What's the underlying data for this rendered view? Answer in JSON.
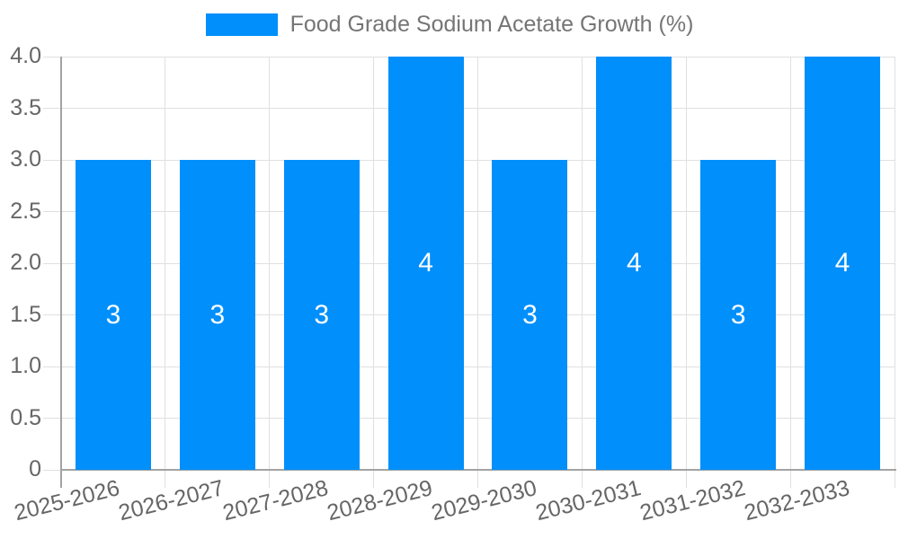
{
  "legend": {
    "label": "Food Grade Sodium Acetate Growth (%)"
  },
  "chart_data": {
    "type": "bar",
    "title": "Food Grade Sodium Acetate Growth (%)",
    "categories": [
      "2025-2026",
      "2026-2027",
      "2027-2028",
      "2028-2029",
      "2029-2030",
      "2030-2031",
      "2031-2032",
      "2032-2033"
    ],
    "series": [
      {
        "name": "Food Grade Sodium Acetate Growth (%)",
        "values": [
          3,
          3,
          3,
          4,
          3,
          4,
          3,
          4
        ]
      }
    ],
    "value_labels": [
      "3",
      "3",
      "3",
      "4",
      "3",
      "4",
      "3",
      "4"
    ],
    "xlabel": "",
    "ylabel": "",
    "ylim": [
      0,
      4
    ],
    "yticks": [
      "4.0",
      "3.5",
      "3.0",
      "2.5",
      "2.0",
      "1.5",
      "1.0",
      "0.5",
      "0"
    ],
    "grid": true,
    "legend_position": "top-center",
    "x_label_rotation_deg": -14,
    "colors": {
      "bar": "#008FFB",
      "grid_line": "#e0e0e0",
      "axis_line": "#a3a3a3",
      "tick_text": "#666666",
      "legend_text": "#757575",
      "bar_label_text": "#ffffff",
      "background": "#ffffff"
    }
  }
}
